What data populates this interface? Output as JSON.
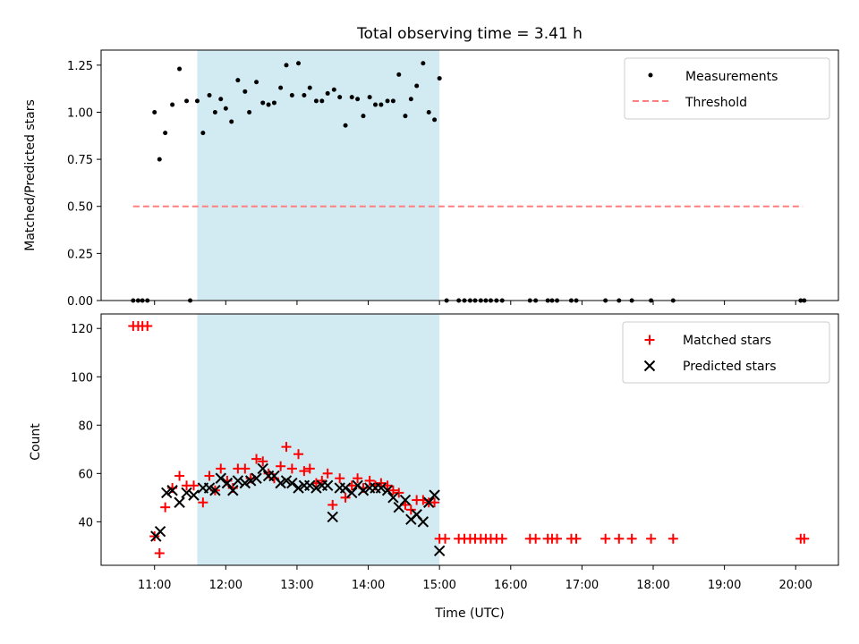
{
  "chart_data": {
    "type": "scatter",
    "title": "Total observing time = 3.41 h",
    "xlabel": "Time (UTC)",
    "xlim_hours": [
      10.25,
      20.6
    ],
    "x_tick_labels": [
      "11:00",
      "12:00",
      "13:00",
      "14:00",
      "15:00",
      "16:00",
      "17:00",
      "18:00",
      "19:00",
      "20:00"
    ],
    "x_tick_hours": [
      11,
      12,
      13,
      14,
      15,
      16,
      17,
      18,
      19,
      20
    ],
    "shaded_interval_hours": [
      11.6,
      15.0
    ],
    "colors": {
      "shade": "#add8e6",
      "matched": "#ff0000",
      "predicted": "#000000",
      "threshold": "#ff7f7f"
    },
    "panels": [
      {
        "name": "ratio",
        "ylabel": "Matched/Predicted stars",
        "ylim": [
          0,
          1.33
        ],
        "y_ticks": [
          0,
          0.25,
          0.5,
          0.75,
          1.0,
          1.25
        ],
        "y_tick_labels": [
          "0.00",
          "0.25",
          "0.50",
          "0.75",
          "1.00",
          "1.25"
        ],
        "legend": {
          "position": "top-right",
          "entries": [
            "Measurements",
            "Threshold"
          ]
        },
        "series": [
          {
            "name": "Measurements",
            "marker": "dot",
            "points": [
              [
                10.7,
                0
              ],
              [
                10.77,
                0
              ],
              [
                10.83,
                0
              ],
              [
                10.9,
                0
              ],
              [
                11.5,
                0
              ],
              [
                11.0,
                1.0
              ],
              [
                11.07,
                0.75
              ],
              [
                11.15,
                0.89
              ],
              [
                11.25,
                1.04
              ],
              [
                11.35,
                1.23
              ],
              [
                11.45,
                1.06
              ],
              [
                11.6,
                1.06
              ],
              [
                11.68,
                0.89
              ],
              [
                11.77,
                1.09
              ],
              [
                11.85,
                1.0
              ],
              [
                11.93,
                1.07
              ],
              [
                12.0,
                1.02
              ],
              [
                12.08,
                0.95
              ],
              [
                12.17,
                1.17
              ],
              [
                12.27,
                1.11
              ],
              [
                12.33,
                1.0
              ],
              [
                12.43,
                1.16
              ],
              [
                12.52,
                1.05
              ],
              [
                12.6,
                1.04
              ],
              [
                12.68,
                1.05
              ],
              [
                12.77,
                1.13
              ],
              [
                12.85,
                1.25
              ],
              [
                12.93,
                1.09
              ],
              [
                13.02,
                1.26
              ],
              [
                13.1,
                1.09
              ],
              [
                13.18,
                1.13
              ],
              [
                13.27,
                1.06
              ],
              [
                13.35,
                1.06
              ],
              [
                13.43,
                1.1
              ],
              [
                13.52,
                1.12
              ],
              [
                13.6,
                1.08
              ],
              [
                13.68,
                0.93
              ],
              [
                13.77,
                1.08
              ],
              [
                13.85,
                1.07
              ],
              [
                13.93,
                0.98
              ],
              [
                14.02,
                1.08
              ],
              [
                14.1,
                1.04
              ],
              [
                14.18,
                1.04
              ],
              [
                14.27,
                1.06
              ],
              [
                14.35,
                1.06
              ],
              [
                14.43,
                1.2
              ],
              [
                14.52,
                0.98
              ],
              [
                14.6,
                1.07
              ],
              [
                14.68,
                1.14
              ],
              [
                14.77,
                1.26
              ],
              [
                14.85,
                1.0
              ],
              [
                14.93,
                0.96
              ],
              [
                15.0,
                1.18
              ],
              [
                15.1,
                0
              ],
              [
                15.27,
                0
              ],
              [
                15.35,
                0
              ],
              [
                15.43,
                0
              ],
              [
                15.5,
                0
              ],
              [
                15.58,
                0
              ],
              [
                15.65,
                0
              ],
              [
                15.72,
                0
              ],
              [
                15.8,
                0
              ],
              [
                15.88,
                0
              ],
              [
                16.27,
                0
              ],
              [
                16.35,
                0
              ],
              [
                16.52,
                0
              ],
              [
                16.58,
                0
              ],
              [
                16.65,
                0
              ],
              [
                16.85,
                0
              ],
              [
                16.92,
                0
              ],
              [
                17.33,
                0
              ],
              [
                17.52,
                0
              ],
              [
                17.7,
                0
              ],
              [
                17.97,
                0
              ],
              [
                18.28,
                0
              ],
              [
                20.07,
                0
              ],
              [
                20.12,
                0
              ]
            ]
          },
          {
            "name": "Threshold",
            "line_style": "dashed",
            "x_range": [
              10.7,
              20.1
            ],
            "value": 0.5
          }
        ]
      },
      {
        "name": "counts",
        "ylabel": "Count",
        "ylim": [
          22,
          126
        ],
        "y_ticks": [
          40,
          60,
          80,
          100,
          120
        ],
        "y_tick_labels": [
          "40",
          "60",
          "80",
          "100",
          "120"
        ],
        "legend": {
          "position": "top-right",
          "entries": [
            "Matched stars",
            "Predicted stars"
          ]
        },
        "series": [
          {
            "name": "Matched stars",
            "marker": "plus",
            "points": [
              [
                10.7,
                121
              ],
              [
                10.77,
                121
              ],
              [
                10.83,
                121
              ],
              [
                10.9,
                121
              ],
              [
                11.0,
                34
              ],
              [
                11.07,
                27
              ],
              [
                11.15,
                46
              ],
              [
                11.25,
                54
              ],
              [
                11.35,
                59
              ],
              [
                11.45,
                55
              ],
              [
                11.55,
                55
              ],
              [
                11.68,
                48
              ],
              [
                11.77,
                59
              ],
              [
                11.85,
                53
              ],
              [
                11.93,
                62
              ],
              [
                12.02,
                57
              ],
              [
                12.1,
                54
              ],
              [
                12.17,
                62
              ],
              [
                12.27,
                62
              ],
              [
                12.35,
                58
              ],
              [
                12.43,
                66
              ],
              [
                12.52,
                65
              ],
              [
                12.6,
                60
              ],
              [
                12.68,
                58
              ],
              [
                12.77,
                63
              ],
              [
                12.85,
                71
              ],
              [
                12.93,
                62
              ],
              [
                13.02,
                68
              ],
              [
                13.1,
                61
              ],
              [
                13.18,
                62
              ],
              [
                13.27,
                56
              ],
              [
                13.35,
                57
              ],
              [
                13.43,
                60
              ],
              [
                13.5,
                47
              ],
              [
                13.6,
                58
              ],
              [
                13.68,
                50
              ],
              [
                13.77,
                55
              ],
              [
                13.85,
                58
              ],
              [
                13.93,
                54
              ],
              [
                14.02,
                57
              ],
              [
                14.1,
                55
              ],
              [
                14.18,
                56
              ],
              [
                14.27,
                55
              ],
              [
                14.35,
                53
              ],
              [
                14.43,
                52
              ],
              [
                14.52,
                47
              ],
              [
                14.6,
                45
              ],
              [
                14.68,
                49
              ],
              [
                14.77,
                49
              ],
              [
                14.85,
                48
              ],
              [
                14.93,
                48
              ],
              [
                15.0,
                33
              ],
              [
                15.08,
                33
              ],
              [
                15.27,
                33
              ],
              [
                15.35,
                33
              ],
              [
                15.43,
                33
              ],
              [
                15.5,
                33
              ],
              [
                15.58,
                33
              ],
              [
                15.65,
                33
              ],
              [
                15.72,
                33
              ],
              [
                15.8,
                33
              ],
              [
                15.88,
                33
              ],
              [
                16.27,
                33
              ],
              [
                16.35,
                33
              ],
              [
                16.52,
                33
              ],
              [
                16.58,
                33
              ],
              [
                16.65,
                33
              ],
              [
                16.85,
                33
              ],
              [
                16.92,
                33
              ],
              [
                17.33,
                33
              ],
              [
                17.52,
                33
              ],
              [
                17.7,
                33
              ],
              [
                17.97,
                33
              ],
              [
                18.28,
                33
              ],
              [
                20.07,
                33
              ],
              [
                20.12,
                33
              ]
            ]
          },
          {
            "name": "Predicted stars",
            "marker": "x",
            "points": [
              [
                11.02,
                34
              ],
              [
                11.08,
                36
              ],
              [
                11.17,
                52
              ],
              [
                11.25,
                53
              ],
              [
                11.35,
                48
              ],
              [
                11.45,
                52
              ],
              [
                11.55,
                51
              ],
              [
                11.68,
                54
              ],
              [
                11.77,
                54
              ],
              [
                11.85,
                53
              ],
              [
                11.93,
                58
              ],
              [
                12.02,
                56
              ],
              [
                12.1,
                53
              ],
              [
                12.17,
                57
              ],
              [
                12.27,
                56
              ],
              [
                12.35,
                57
              ],
              [
                12.43,
                58
              ],
              [
                12.52,
                62
              ],
              [
                12.6,
                59
              ],
              [
                12.68,
                59
              ],
              [
                12.77,
                56
              ],
              [
                12.85,
                57
              ],
              [
                12.93,
                56
              ],
              [
                13.02,
                54
              ],
              [
                13.1,
                55
              ],
              [
                13.18,
                55
              ],
              [
                13.27,
                54
              ],
              [
                13.35,
                55
              ],
              [
                13.43,
                55
              ],
              [
                13.5,
                42
              ],
              [
                13.6,
                54
              ],
              [
                13.68,
                54
              ],
              [
                13.77,
                52
              ],
              [
                13.85,
                55
              ],
              [
                13.93,
                53
              ],
              [
                14.02,
                54
              ],
              [
                14.1,
                54
              ],
              [
                14.18,
                54
              ],
              [
                14.27,
                53
              ],
              [
                14.35,
                50
              ],
              [
                14.43,
                46
              ],
              [
                14.52,
                49
              ],
              [
                14.6,
                41
              ],
              [
                14.68,
                43
              ],
              [
                14.77,
                40
              ],
              [
                14.85,
                48
              ],
              [
                14.93,
                51
              ],
              [
                15.0,
                28
              ]
            ]
          }
        ]
      }
    ]
  }
}
